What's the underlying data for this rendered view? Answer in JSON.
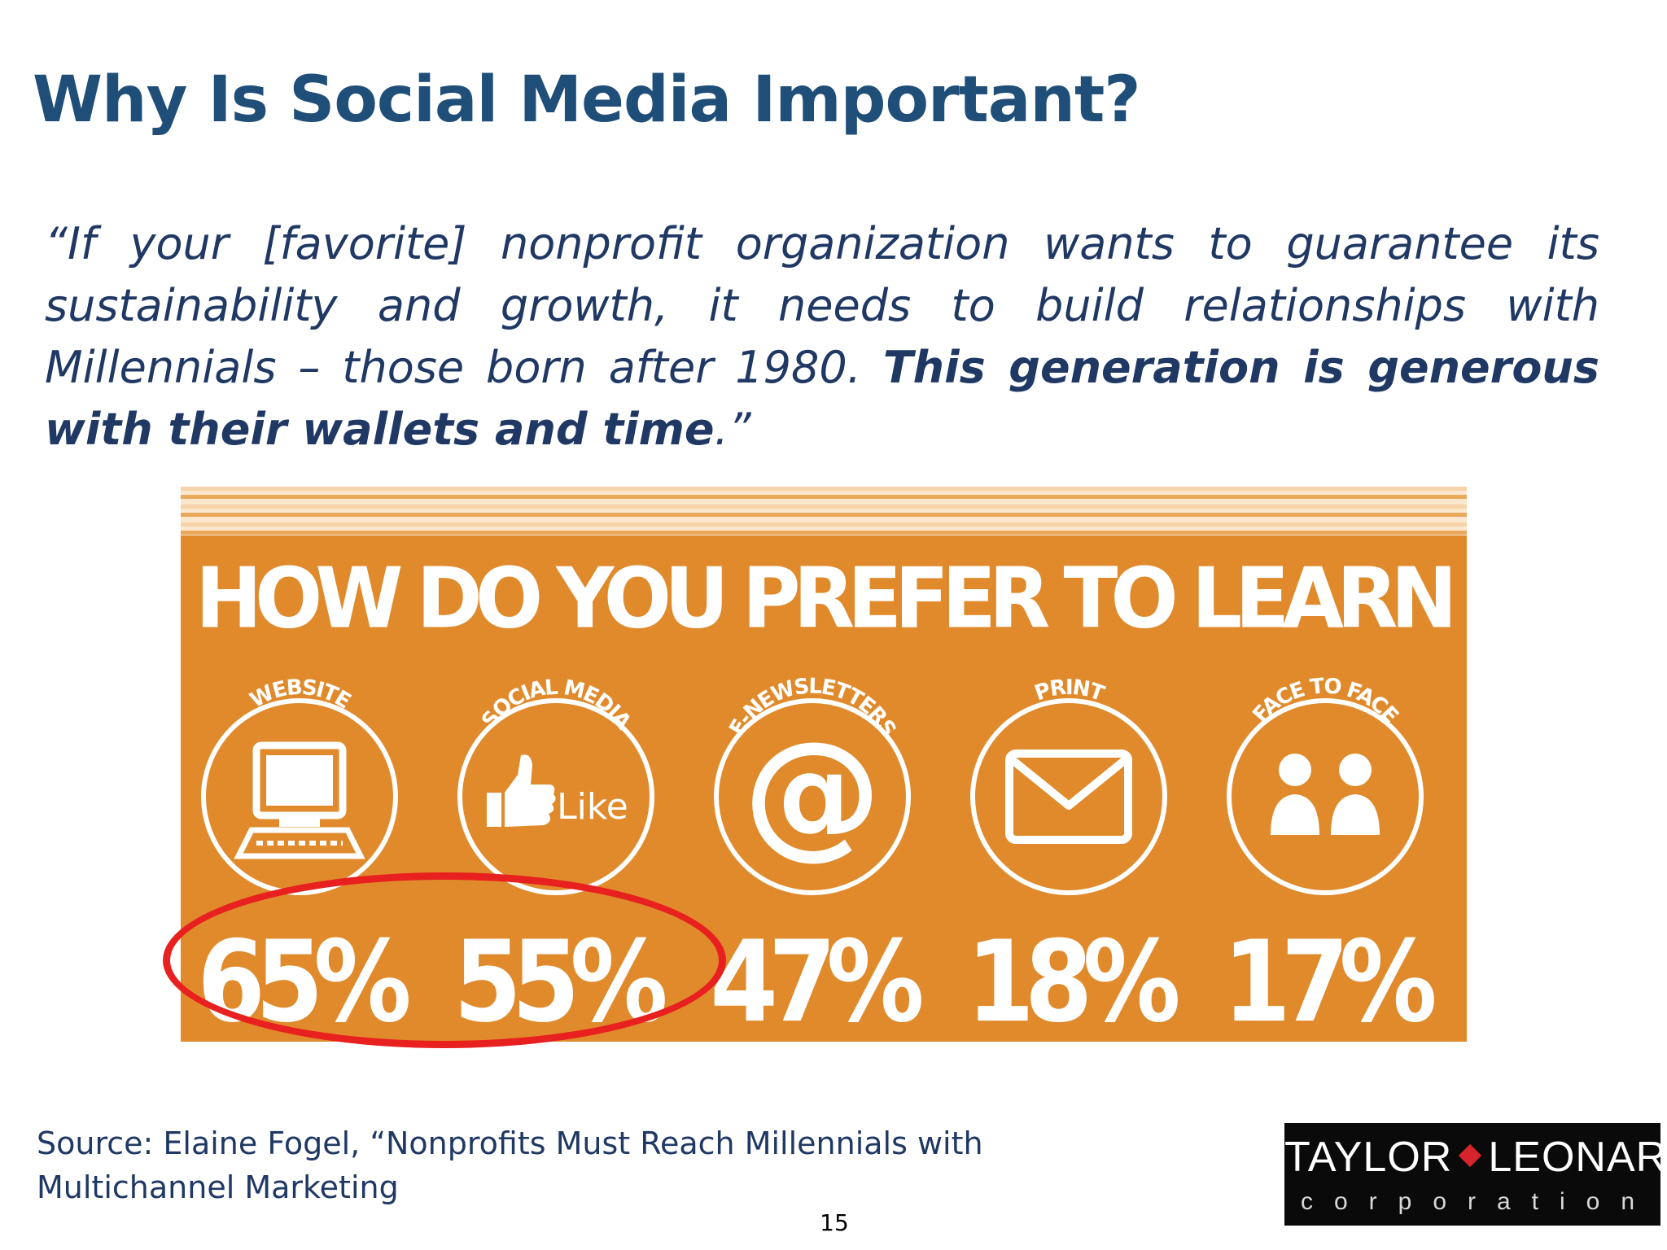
{
  "slide": {
    "title": "Why Is Social Media Important?",
    "quote_part1": "“If your [favorite] nonprofit organization wants to guarantee its sustainability and growth, it needs to build relationships with Millennials – those born after 1980. ",
    "quote_bold": "This generation is generous with their wallets and time",
    "quote_end": ".”",
    "source_line1": "Source: Elaine Fogel, “Nonprofits Must Reach Millennials with",
    "source_line2": "Multichannel Marketing",
    "page_number": "15"
  },
  "infographic": {
    "title": "HOW DO YOU PREFER TO LEARN ABOUT NONPROFITS?",
    "background": "#e08a2c",
    "highlight_color": "#e8201f",
    "channels": [
      {
        "label": "WEBSITE",
        "value": "65%",
        "icon": "computer-icon"
      },
      {
        "label": "SOCIAL MEDIA",
        "value": "55%",
        "icon": "thumbs-up-like-icon",
        "icon_text": "Like"
      },
      {
        "label": "E-NEWSLETTERS",
        "value": "47%",
        "icon": "at-sign-icon",
        "icon_text": "@"
      },
      {
        "label": "PRINT",
        "value": "18%",
        "icon": "envelope-icon"
      },
      {
        "label": "FACE TO FACE",
        "value": "17%",
        "icon": "people-icon"
      }
    ]
  },
  "logo": {
    "main_left": "TAYLOR",
    "main_right": "LEONARD",
    "sub": "corporation",
    "accent": "#d6232c"
  }
}
